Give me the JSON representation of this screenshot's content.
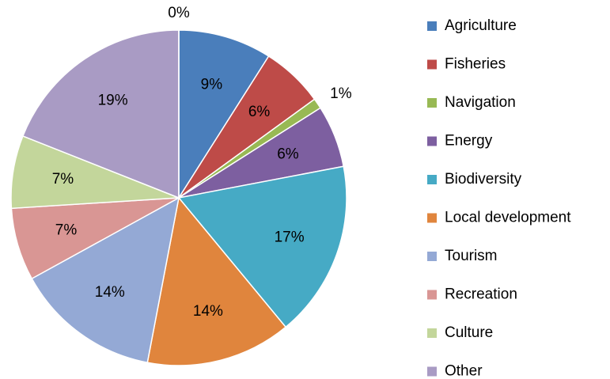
{
  "chart_data": {
    "type": "pie",
    "categories": [
      "Agriculture",
      "Fisheries",
      "Navigation",
      "Energy",
      "Biodiversity",
      "Local development",
      "Tourism",
      "Recreation",
      "Culture",
      "Other",
      null
    ],
    "values": [
      9,
      6,
      1,
      6,
      17,
      14,
      14,
      7,
      7,
      19,
      0
    ],
    "value_labels": [
      "9%",
      "6%",
      "1%",
      "6%",
      "17%",
      "14%",
      "14%",
      "7%",
      "7%",
      "19%",
      "0%"
    ],
    "colors": [
      "#4a7ebb",
      "#be4b48",
      "#98b954",
      "#7d5fa0",
      "#46aac5",
      "#e0853d",
      "#94a9d5",
      "#d99694",
      "#c3d69b",
      "#a99bc4",
      "#9fc5e0"
    ],
    "legend": "right"
  }
}
